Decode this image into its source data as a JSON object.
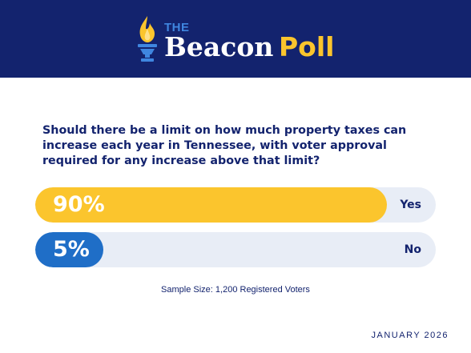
{
  "header": {
    "logo_the": "THE",
    "logo_beacon": "Beacon",
    "logo_poll": "Poll",
    "logo_icon": "torch-icon",
    "background_color": "#13236e",
    "accent_color": "#fbc52d",
    "blue_color": "#3f86e0"
  },
  "poll": {
    "question": "Should there be a limit on how much property taxes can increase each year in Tennessee, with voter approval required for any increase above that limit?",
    "results": [
      {
        "label": "Yes",
        "percent_text": "90%",
        "value": 90,
        "color": "#fbc52d"
      },
      {
        "label": "No",
        "percent_text": "5%",
        "value": 5,
        "color": "#1f6ec7"
      }
    ],
    "sample_size": "Sample Size: 1,200 Registered Voters",
    "date": "JANUARY 2026"
  }
}
